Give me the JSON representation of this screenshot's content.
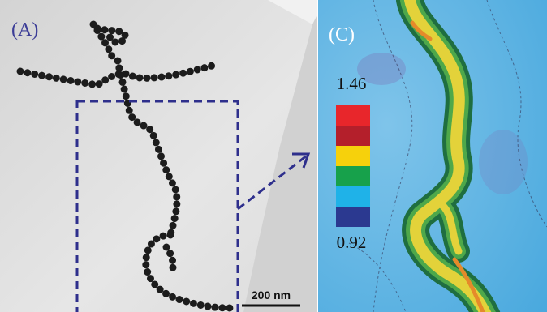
{
  "panels": [
    {
      "label": "(A)",
      "scale_bar": "200 nm"
    },
    {
      "label": "(C)",
      "colorbar": {
        "max": 1.46,
        "min": 0.92
      }
    }
  ]
}
